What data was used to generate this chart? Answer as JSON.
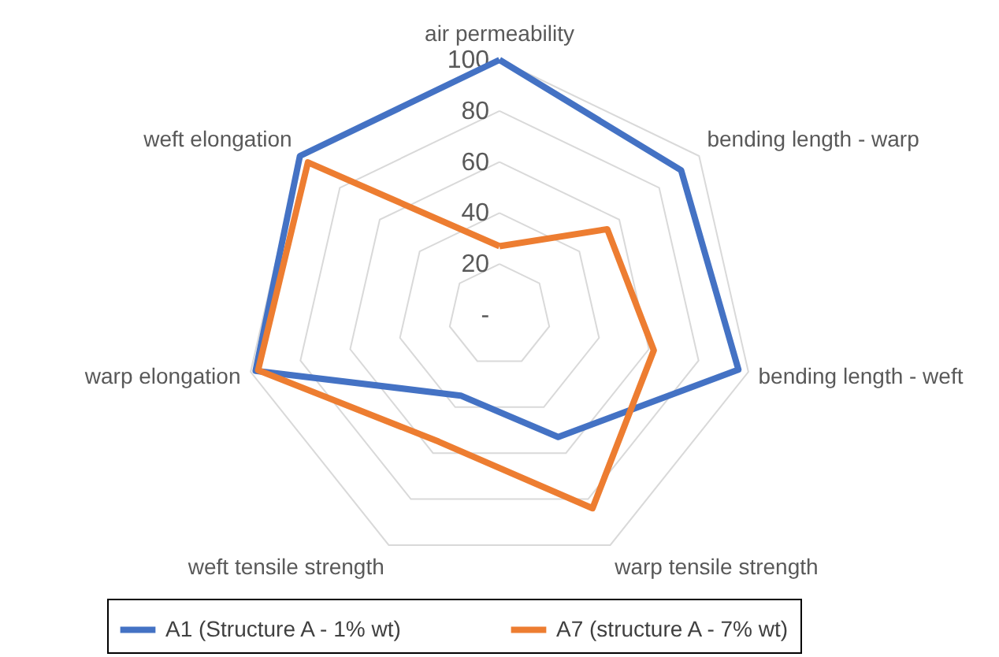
{
  "chart_data": {
    "type": "radar",
    "categories": [
      "air permeability",
      "bending length - warp",
      "bending length - weft",
      "warp tensile strength",
      "weft tensile strength",
      "warp elongation",
      "weft elongation"
    ],
    "series": [
      {
        "name": "A1 (Structure A - 1% wt)",
        "color": "#4472c4",
        "values": [
          100,
          91,
          96,
          53,
          35,
          98,
          100
        ]
      },
      {
        "name": "A7 (structure A - 7% wt)",
        "color": "#ed7d31",
        "values": [
          27,
          54,
          62,
          84,
          55,
          97,
          96
        ]
      }
    ],
    "ylim": [
      0,
      100
    ],
    "yticks": [
      {
        "value": 0,
        "label": "-"
      },
      20,
      40,
      60,
      80,
      100
    ],
    "grid": true,
    "legend": "bottom"
  }
}
